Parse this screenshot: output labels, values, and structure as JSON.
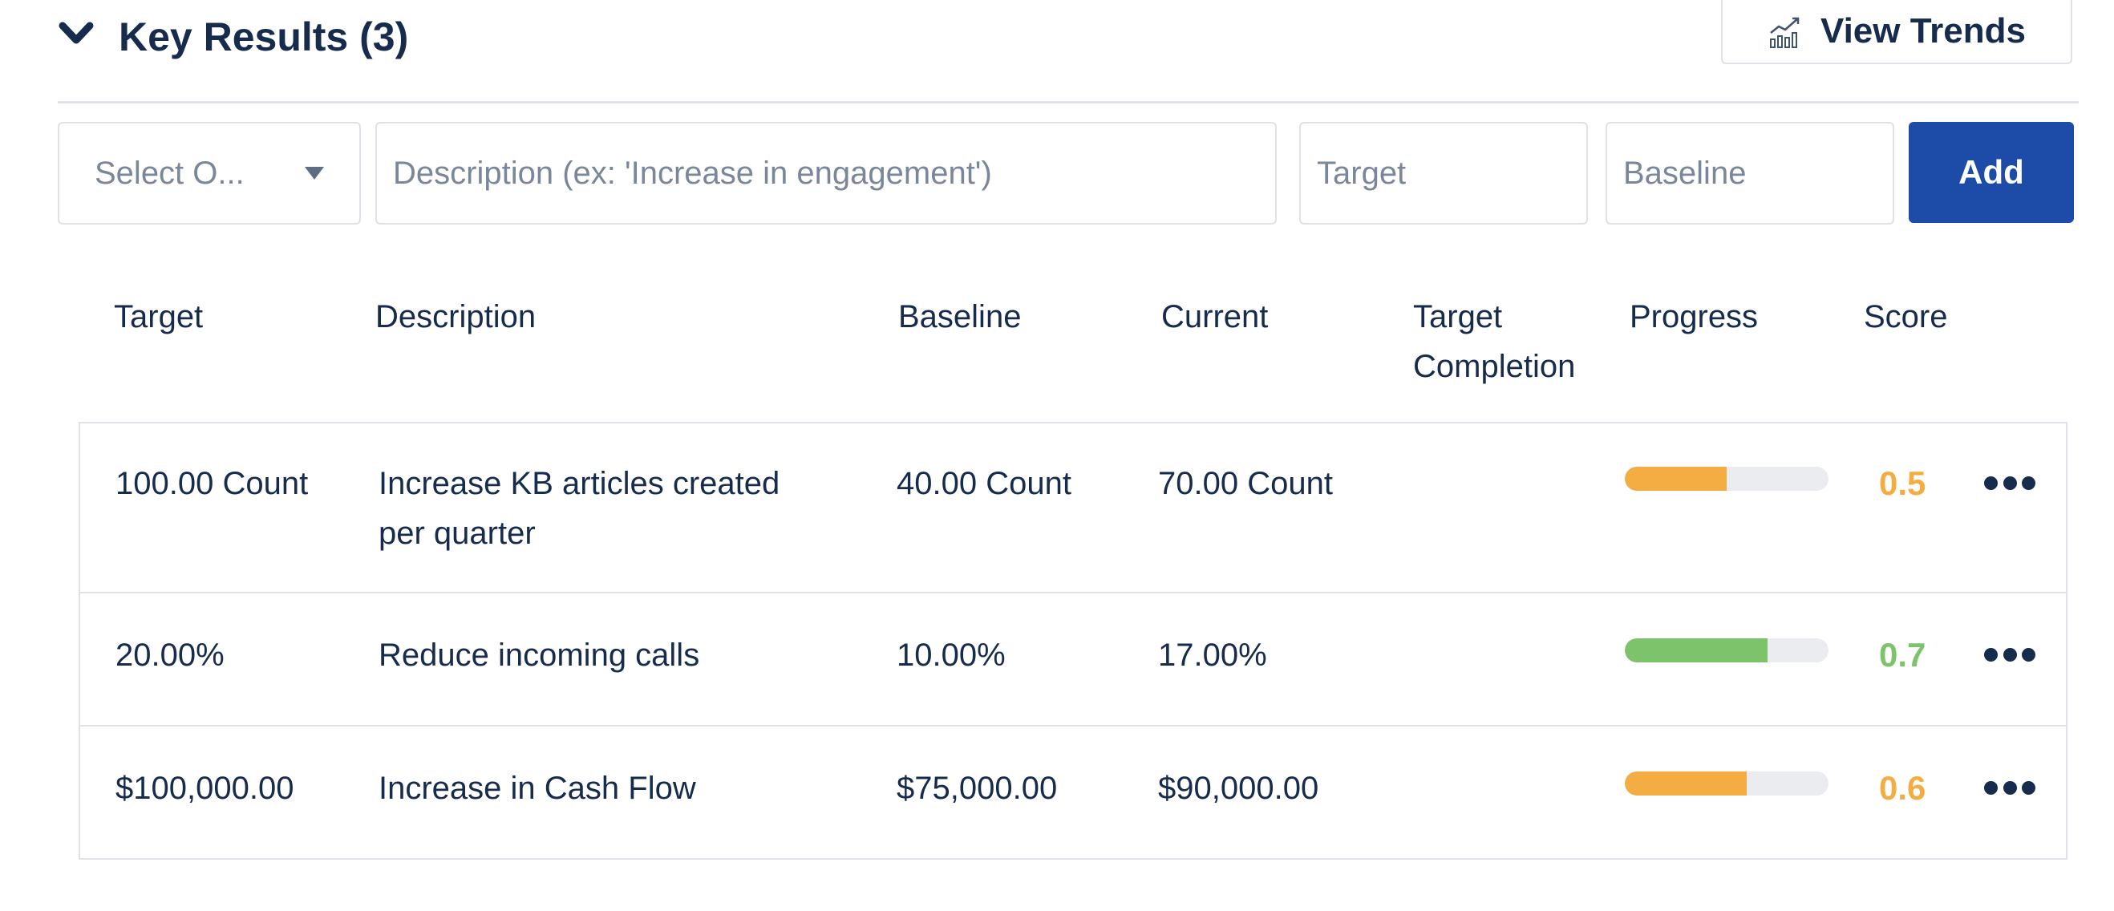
{
  "section": {
    "title": "Key Results (3)",
    "view_trends_label": "View Trends"
  },
  "form": {
    "select_placeholder": "Select O...",
    "description_placeholder": "Description (ex: 'Increase in engagement')",
    "target_placeholder": "Target",
    "baseline_placeholder": "Baseline",
    "add_label": "Add"
  },
  "columns": {
    "target": "Target",
    "description": "Description",
    "baseline": "Baseline",
    "current": "Current",
    "target_completion_line1": "Target",
    "target_completion_line2": "Completion",
    "progress": "Progress",
    "score": "Score"
  },
  "rows": [
    {
      "target": "100.00 Count",
      "description_line1": "Increase KB articles created",
      "description_line2": "per quarter",
      "baseline": "40.00 Count",
      "current": "70.00 Count",
      "target_completion": "",
      "progress": 0.5,
      "score": "0.5",
      "color": "#f4ad42"
    },
    {
      "target": "20.00%",
      "description_line1": "Reduce incoming calls",
      "description_line2": "",
      "baseline": "10.00%",
      "current": "17.00%",
      "target_completion": "",
      "progress": 0.7,
      "score": "0.7",
      "color": "#7dc36b"
    },
    {
      "target": "$100,000.00",
      "description_line1": "Increase in Cash Flow",
      "description_line2": "",
      "baseline": "$75,000.00",
      "current": "$90,000.00",
      "target_completion": "",
      "progress": 0.6,
      "score": "0.6",
      "color": "#f4ad42"
    }
  ],
  "icons": {
    "collapse": "chevron-down-icon",
    "trends": "bar-chart-trend-icon",
    "row_menu": "more-horizontal-icon"
  }
}
